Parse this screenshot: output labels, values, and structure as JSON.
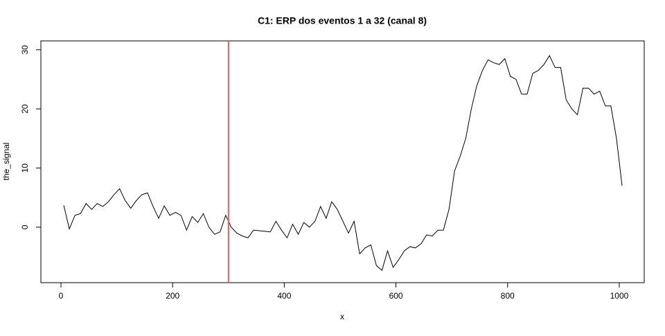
{
  "chart_data": {
    "type": "line",
    "title": "C1: ERP dos eventos 1 a 32 (canal 8)",
    "x_label": "x",
    "y_label": "the_signal",
    "x": [
      5,
      15,
      25,
      35,
      45,
      55,
      65,
      75,
      85,
      95,
      105,
      115,
      125,
      135,
      145,
      155,
      165,
      175,
      185,
      195,
      205,
      215,
      225,
      235,
      245,
      255,
      265,
      275,
      285,
      295,
      305,
      315,
      325,
      335,
      345,
      355,
      365,
      375,
      385,
      395,
      405,
      415,
      425,
      435,
      445,
      455,
      465,
      475,
      485,
      495,
      505,
      515,
      525,
      535,
      545,
      555,
      565,
      575,
      585,
      595,
      605,
      615,
      625,
      635,
      645,
      655,
      665,
      675,
      685,
      695,
      705,
      715,
      725,
      735,
      745,
      755,
      765,
      775,
      785,
      795,
      805,
      815,
      825,
      835,
      845,
      855,
      865,
      875,
      885,
      895,
      905,
      915,
      925,
      935,
      945,
      955,
      965,
      975,
      985,
      995,
      1005
    ],
    "series": [
      {
        "color": "#000000",
        "values": [
          3.7,
          -0.3,
          2,
          2.3,
          4,
          3,
          4,
          3.5,
          4.3,
          5.5,
          6.5,
          4.5,
          3.2,
          4.5,
          5.5,
          5.8,
          3.5,
          1.5,
          3.6,
          2,
          2.5,
          2,
          -0.5,
          1.8,
          0.8,
          2.3,
          0,
          -1.2,
          -0.8,
          2,
          0,
          -1,
          -1.5,
          -1.8,
          -0.5,
          -0.6,
          -0.7,
          -0.8,
          1,
          -0.5,
          -1.8,
          0.5,
          -1.2,
          0.8,
          0,
          1,
          3.5,
          1.5,
          4.3,
          3,
          1,
          -1,
          1,
          -4.5,
          -3.5,
          -3,
          -6.5,
          -7.3,
          -4,
          -6.8,
          -5.5,
          -4,
          -3.3,
          -3.5,
          -2.8,
          -1.3,
          -1.5,
          -0.5,
          -0.5,
          3,
          9.5,
          12,
          15,
          20,
          24,
          26.5,
          28.3,
          27.8,
          27.5,
          28.5,
          25.5,
          25,
          22.5,
          22.5,
          26,
          26.5,
          27.5,
          29,
          27,
          27,
          21.5,
          20,
          19,
          23.5,
          23.5,
          22.5,
          23,
          20.5,
          20.5,
          15,
          7
        ]
      }
    ],
    "vline": {
      "x": 300,
      "color": "#e06060"
    },
    "xlim": [
      -36,
      1044.7
    ],
    "ylim": [
      -9.38,
      31.5
    ],
    "xticks": [
      0,
      200,
      400,
      600,
      800,
      1000
    ],
    "yticks": [
      0,
      10,
      20,
      30
    ]
  }
}
